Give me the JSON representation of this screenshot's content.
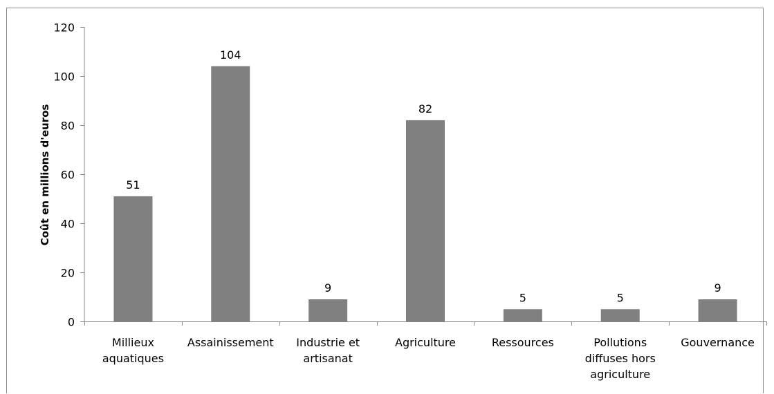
{
  "chart_data": {
    "type": "bar",
    "title": "",
    "xlabel": "",
    "ylabel": "Coût en millions d'euros",
    "categories": [
      "Millieux aquatiques",
      "Assainissement",
      "Industrie et artisanat",
      "Agriculture",
      "Ressources",
      "Pollutions diffuses hors agriculture",
      "Gouvernance"
    ],
    "category_lines": [
      [
        "Millieux",
        "aquatiques"
      ],
      [
        "Assainissement"
      ],
      [
        "Industrie et",
        "artisanat"
      ],
      [
        "Agriculture"
      ],
      [
        "Ressources"
      ],
      [
        "Pollutions",
        "diffuses hors",
        "agriculture"
      ],
      [
        "Gouvernance"
      ]
    ],
    "values": [
      51,
      104,
      9,
      82,
      5,
      5,
      9
    ],
    "data_labels": [
      "51",
      "104",
      "9",
      "82",
      "5",
      "5",
      "9"
    ],
    "ylim": [
      0,
      120
    ],
    "yticks": [
      0,
      20,
      40,
      60,
      80,
      100,
      120
    ],
    "grid": false,
    "legend": "none",
    "colors": {
      "bar": "#808080",
      "axis": "#868686",
      "frame": "#8c8c8c"
    }
  }
}
